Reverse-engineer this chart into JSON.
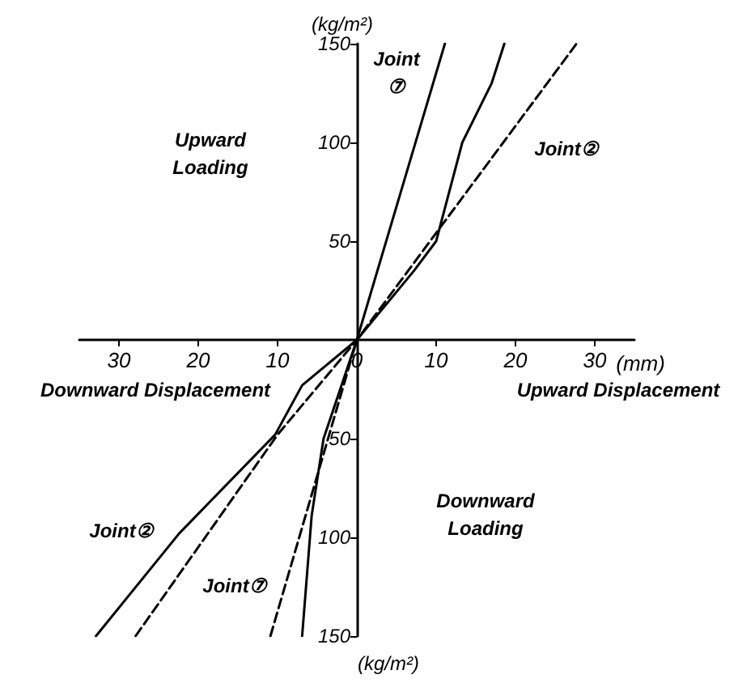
{
  "chart_data": {
    "type": "line",
    "xlabel": "(mm)",
    "ylabel": "(kg/m²)",
    "xlim": [
      -35,
      35
    ],
    "ylim": [
      -150,
      150
    ],
    "xticks": [
      {
        "value": -30,
        "label": "30"
      },
      {
        "value": -20,
        "label": "20"
      },
      {
        "value": -10,
        "label": "10"
      },
      0,
      10,
      20,
      30
    ],
    "yticks": [
      {
        "value": -150,
        "label": "150"
      },
      {
        "value": -100,
        "label": "100"
      },
      {
        "value": -50,
        "label": "50"
      },
      50,
      100,
      150
    ],
    "series": [
      {
        "color": "#000000",
        "line_style": "solid",
        "x": [
          -6.9,
          -5.7,
          -4.2,
          0,
          11.1
        ],
        "values": [
          -150,
          -89,
          -50,
          0,
          150
        ]
      },
      {
        "color": "#000000",
        "line_style": "dashed",
        "x": [
          -10.9,
          0
        ],
        "values": [
          -150,
          0
        ]
      },
      {
        "color": "#000000",
        "line_style": "solid",
        "x": [
          -32.9,
          -22.4,
          -10.3,
          -6.9,
          0,
          7.2,
          10,
          13.3,
          17,
          18.6
        ],
        "values": [
          -150,
          -98,
          -48,
          -23,
          0,
          35,
          50,
          100,
          130,
          150
        ]
      },
      {
        "color": "#000000",
        "line_style": "dashed",
        "x": [
          -27.9,
          -10,
          0,
          27.7
        ],
        "values": [
          -150,
          -48,
          0,
          150
        ]
      }
    ],
    "annotations": [
      "Joint\n⑦",
      "Joint②",
      "Upward\nLoading",
      "Downward Displacement",
      "Upward Displacement",
      "Downward\nLoading",
      "Joint②",
      "Joint⑦",
      "(kg/m²)"
    ],
    "marker": "none",
    "grid": false
  }
}
